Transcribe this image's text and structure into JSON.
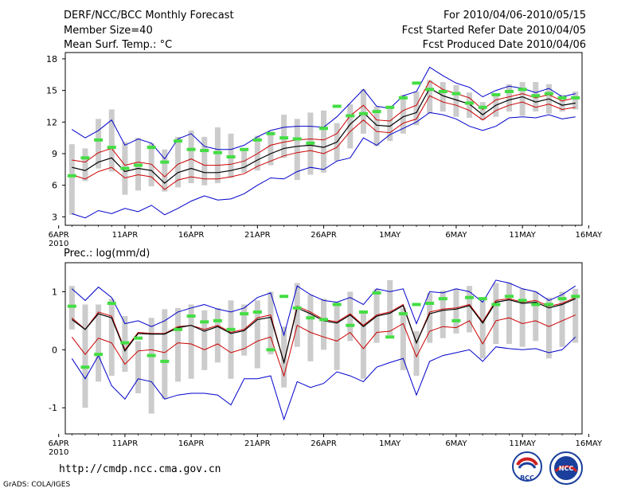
{
  "header": {
    "title": "DERF/NCC/BCC Monthly Forecast",
    "member_size": "Member Size=40",
    "variable": "Mean Surf. Temp.: °C",
    "period": "For 2010/04/06-2010/05/15",
    "start_date": "Fcst Started Refer Date 2010/04/05",
    "produced_date": "Fcst Produced Date 2010/04/06"
  },
  "footer": {
    "url": "http://cmdp.ncc.cma.gov.cn",
    "credit": "GrADS: COLA/IGES",
    "logo_bcc": "BCC",
    "logo_ncc": "NCC"
  },
  "colors": {
    "envelope": "#0000cc",
    "spread": "#cc0000",
    "mean": "#000000",
    "box": "#cccccc",
    "marker": "#44dd44"
  },
  "chart_data": [
    {
      "type": "line",
      "title": "",
      "ylabel": "Mean Surf. Temp.: °C",
      "ylim": [
        2.2,
        18.6
      ],
      "yticks": [
        3,
        6,
        9,
        12,
        15,
        18
      ],
      "xlim": [
        0.5,
        39.5
      ],
      "xtick_positions": [
        0,
        5,
        10,
        15,
        20,
        25,
        30,
        35,
        40
      ],
      "xtick_labels": [
        "6APR",
        "11APR",
        "16APR",
        "21APR",
        "26APR",
        "1MAY",
        "6MAY",
        "11MAY",
        "16MAY"
      ],
      "year_label": "2010",
      "x": [
        1,
        2,
        3,
        4,
        5,
        6,
        7,
        8,
        9,
        10,
        11,
        12,
        13,
        14,
        15,
        16,
        17,
        18,
        19,
        20,
        21,
        22,
        23,
        24,
        25,
        26,
        27,
        28,
        29,
        30,
        31,
        32,
        33,
        34,
        35,
        36,
        37,
        38,
        39
      ],
      "series": [
        {
          "name": "max",
          "values": [
            11.3,
            10.5,
            11.2,
            12.2,
            9.8,
            10.4,
            10.0,
            8.5,
            10.4,
            10.9,
            9.7,
            9.4,
            9.4,
            9.8,
            10.6,
            11.2,
            11.5,
            11.6,
            11.6,
            11.5,
            12.5,
            13.8,
            15.1,
            13.5,
            13.3,
            14.5,
            14.9,
            17.2,
            16.4,
            15.7,
            15.3,
            14.4,
            15.0,
            15.4,
            15.2,
            14.8,
            15.2,
            14.4,
            14.7
          ]
        },
        {
          "name": "upper",
          "values": [
            8.4,
            8.2,
            9.1,
            9.5,
            7.9,
            8.2,
            8.0,
            6.8,
            8.0,
            8.5,
            7.9,
            7.9,
            8.0,
            8.3,
            9.0,
            9.8,
            10.1,
            10.3,
            10.4,
            10.3,
            10.9,
            12.6,
            13.6,
            12.2,
            12.1,
            13.1,
            13.6,
            15.9,
            15.1,
            14.7,
            14.3,
            13.2,
            14.1,
            14.4,
            14.7,
            14.3,
            14.6,
            14.0,
            14.3
          ]
        },
        {
          "name": "mean",
          "values": [
            7.7,
            7.4,
            8.2,
            8.6,
            7.3,
            7.6,
            7.4,
            6.2,
            7.2,
            7.6,
            7.2,
            7.2,
            7.4,
            7.7,
            8.4,
            9.0,
            9.5,
            9.7,
            9.8,
            9.6,
            10.1,
            11.8,
            12.9,
            11.7,
            11.6,
            12.5,
            12.9,
            15.2,
            14.5,
            14.1,
            13.7,
            12.7,
            13.6,
            14.1,
            14.4,
            13.9,
            14.2,
            13.6,
            13.8
          ]
        },
        {
          "name": "lower",
          "values": [
            7.0,
            6.6,
            7.3,
            7.7,
            6.7,
            7.0,
            6.8,
            5.6,
            6.5,
            6.8,
            6.6,
            6.6,
            6.8,
            7.1,
            7.8,
            8.3,
            8.8,
            9.1,
            9.3,
            9.0,
            9.6,
            11.1,
            12.2,
            11.1,
            11.0,
            11.9,
            12.3,
            14.5,
            13.9,
            13.6,
            13.1,
            12.2,
            13.1,
            13.6,
            13.9,
            13.4,
            13.7,
            13.2,
            13.4
          ]
        },
        {
          "name": "min",
          "values": [
            3.3,
            2.9,
            3.6,
            3.3,
            3.8,
            3.5,
            4.1,
            3.2,
            3.8,
            4.5,
            5.0,
            4.6,
            4.7,
            5.2,
            6.0,
            6.7,
            6.6,
            7.3,
            7.7,
            7.5,
            8.3,
            8.6,
            10.5,
            9.8,
            10.8,
            11.4,
            12.0,
            12.9,
            12.7,
            12.3,
            11.6,
            11.2,
            11.6,
            12.4,
            12.5,
            12.4,
            12.7,
            12.3,
            12.5
          ]
        }
      ],
      "boxes": [
        [
          3.2,
          9.9
        ],
        [
          6.4,
          9.5
        ],
        [
          7.6,
          12.3
        ],
        [
          7.3,
          13.2
        ],
        [
          5.1,
          10.1
        ],
        [
          5.5,
          10.5
        ],
        [
          5.9,
          10.0
        ],
        [
          5.4,
          9.4
        ],
        [
          5.8,
          10.6
        ],
        [
          6.2,
          11.2
        ],
        [
          6.0,
          10.6
        ],
        [
          6.2,
          11.5
        ],
        [
          6.7,
          10.9
        ],
        [
          7.2,
          9.3
        ],
        [
          7.4,
          10.7
        ],
        [
          7.9,
          11.1
        ],
        [
          8.6,
          12.7
        ],
        [
          6.5,
          12.3
        ],
        [
          7.0,
          12.9
        ],
        [
          7.2,
          13.1
        ],
        [
          8.3,
          11.9
        ],
        [
          9.5,
          13.7
        ],
        [
          10.9,
          15.1
        ],
        [
          9.7,
          13.5
        ],
        [
          10.2,
          13.4
        ],
        [
          10.9,
          14.6
        ],
        [
          11.7,
          14.9
        ],
        [
          12.8,
          16.0
        ],
        [
          13.0,
          15.8
        ],
        [
          12.5,
          15.5
        ],
        [
          12.4,
          14.8
        ],
        [
          12.2,
          13.9
        ],
        [
          12.5,
          14.7
        ],
        [
          13.0,
          15.6
        ],
        [
          12.6,
          15.8
        ],
        [
          13.0,
          15.8
        ],
        [
          12.8,
          15.6
        ],
        [
          13.0,
          14.6
        ],
        [
          13.2,
          14.9
        ]
      ],
      "markers": [
        6.9,
        8.6,
        10.3,
        9.6,
        7.6,
        7.9,
        9.6,
        8.2,
        10.2,
        9.4,
        9.3,
        9.1,
        8.7,
        9.4,
        10.3,
        10.9,
        10.5,
        10.4,
        10.0,
        11.4,
        13.5,
        12.6,
        12.8,
        13.0,
        13.4,
        14.3,
        15.7,
        15.1,
        14.9,
        14.7,
        13.8,
        13.4,
        14.6,
        14.9,
        15.1,
        14.5,
        14.7,
        14.3,
        14.3
      ]
    },
    {
      "type": "line",
      "title": "",
      "ylabel": "Prec.: log(mm/d)",
      "ylim": [
        -1.45,
        1.5
      ],
      "yticks": [
        -1,
        0,
        1
      ],
      "xlim": [
        0.5,
        39.5
      ],
      "xtick_positions": [
        0,
        5,
        10,
        15,
        20,
        25,
        30,
        35,
        40
      ],
      "xtick_labels": [
        "6APR",
        "11APR",
        "16APR",
        "21APR",
        "26APR",
        "1MAY",
        "6MAY",
        "11MAY",
        "16MAY"
      ],
      "year_label": "2010",
      "x": [
        1,
        2,
        3,
        4,
        5,
        6,
        7,
        8,
        9,
        10,
        11,
        12,
        13,
        14,
        15,
        16,
        17,
        18,
        19,
        20,
        21,
        22,
        23,
        24,
        25,
        26,
        27,
        28,
        29,
        30,
        31,
        32,
        33,
        34,
        35,
        36,
        37,
        38,
        39
      ],
      "series": [
        {
          "name": "max",
          "values": [
            1.05,
            0.85,
            1.08,
            0.9,
            0.45,
            0.5,
            0.4,
            0.5,
            0.65,
            0.72,
            0.78,
            0.7,
            0.65,
            0.72,
            0.9,
            0.98,
            0.25,
            1.1,
            0.95,
            0.85,
            0.82,
            0.9,
            0.78,
            1.05,
            1.0,
            1.05,
            0.45,
            1.0,
            0.98,
            1.05,
            1.0,
            0.82,
            1.2,
            1.15,
            1.05,
            1.0,
            0.85,
            0.95,
            1.1
          ]
        },
        {
          "name": "upper",
          "values": [
            0.55,
            0.35,
            0.65,
            0.58,
            0.0,
            0.3,
            0.28,
            0.28,
            0.4,
            0.42,
            0.35,
            0.42,
            0.3,
            0.35,
            0.55,
            0.6,
            -0.22,
            0.75,
            0.65,
            0.52,
            0.48,
            0.62,
            0.42,
            0.6,
            0.65,
            0.78,
            0.12,
            0.65,
            0.7,
            0.72,
            0.78,
            0.48,
            0.85,
            0.88,
            0.82,
            0.85,
            0.75,
            0.8,
            0.9
          ]
        },
        {
          "name": "mean",
          "values": [
            0.52,
            0.35,
            0.62,
            0.55,
            -0.02,
            0.28,
            0.27,
            0.27,
            0.38,
            0.42,
            0.32,
            0.4,
            0.28,
            0.33,
            0.52,
            0.56,
            -0.22,
            0.72,
            0.62,
            0.5,
            0.46,
            0.6,
            0.4,
            0.58,
            0.63,
            0.76,
            0.12,
            0.62,
            0.68,
            0.7,
            0.76,
            0.46,
            0.82,
            0.86,
            0.8,
            0.82,
            0.72,
            0.78,
            0.88
          ]
        },
        {
          "name": "lower",
          "values": [
            0.22,
            -0.08,
            0.2,
            0.12,
            -0.25,
            -0.02,
            0.0,
            -0.05,
            0.12,
            0.1,
            0.0,
            0.1,
            -0.05,
            0.02,
            0.15,
            0.22,
            -0.45,
            0.42,
            0.3,
            0.22,
            0.15,
            0.3,
            0.02,
            0.3,
            0.32,
            0.45,
            -0.12,
            0.32,
            0.4,
            0.38,
            0.5,
            0.1,
            0.5,
            0.55,
            0.45,
            0.5,
            0.4,
            0.5,
            0.6
          ]
        },
        {
          "name": "min",
          "values": [
            -0.15,
            -0.5,
            -0.1,
            -0.62,
            -0.85,
            -0.5,
            -0.55,
            -0.85,
            -0.78,
            -0.75,
            -0.75,
            -0.78,
            -0.95,
            -0.5,
            -0.5,
            -0.45,
            -1.2,
            -0.55,
            -0.65,
            -0.58,
            -0.38,
            -0.45,
            -0.55,
            -0.3,
            -0.22,
            -0.15,
            -0.78,
            -0.2,
            -0.1,
            -0.05,
            0.0,
            -0.2,
            0.05,
            0.02,
            0.0,
            0.02,
            -0.05,
            0.0,
            0.22
          ]
        },
        {
          "name": "max_peak",
          "values": [
            1.1,
            0.95,
            1.12,
            1.05,
            0.52,
            0.55,
            0.45,
            0.55,
            0.7,
            0.8,
            0.85,
            0.78,
            0.7,
            0.78,
            0.95,
            1.02,
            0.3,
            1.12,
            1.0,
            0.9,
            0.85,
            0.95,
            0.82,
            1.08,
            1.02,
            1.08,
            0.5,
            1.02,
            1.0,
            1.08,
            1.02,
            0.85,
            1.2,
            1.18,
            1.08,
            1.02,
            0.9,
            1.0,
            1.1
          ]
        }
      ],
      "boxes": [
        [
          0.35,
          1.1
        ],
        [
          -1.0,
          0.78
        ],
        [
          -0.55,
          0.78
        ],
        [
          -0.45,
          0.88
        ],
        [
          -0.38,
          0.58
        ],
        [
          -0.75,
          0.15
        ],
        [
          -1.1,
          0.55
        ],
        [
          -0.85,
          0.7
        ],
        [
          -0.55,
          0.72
        ],
        [
          -0.5,
          0.78
        ],
        [
          -0.35,
          0.68
        ],
        [
          -0.22,
          0.72
        ],
        [
          -0.5,
          0.85
        ],
        [
          -0.1,
          0.78
        ],
        [
          -0.32,
          0.85
        ],
        [
          -0.08,
          1.0
        ],
        [
          -0.65,
          0.4
        ],
        [
          0.05,
          1.15
        ],
        [
          -0.2,
          0.95
        ],
        [
          0.0,
          0.88
        ],
        [
          -0.35,
          0.82
        ],
        [
          0.15,
          1.0
        ],
        [
          -0.5,
          0.65
        ],
        [
          0.12,
          1.05
        ],
        [
          0.25,
          1.2
        ],
        [
          -0.35,
          0.72
        ],
        [
          -0.45,
          0.32
        ],
        [
          0.12,
          0.98
        ],
        [
          0.2,
          1.02
        ],
        [
          0.28,
          1.05
        ],
        [
          0.3,
          1.1
        ],
        [
          -0.15,
          0.85
        ],
        [
          0.1,
          1.15
        ],
        [
          0.1,
          1.15
        ],
        [
          0.05,
          1.05
        ],
        [
          0.15,
          1.0
        ],
        [
          -0.15,
          0.9
        ],
        [
          0.05,
          1.0
        ],
        [
          0.12,
          1.05
        ]
      ],
      "markers": [
        0.75,
        -0.3,
        -0.08,
        0.8,
        0.12,
        0.2,
        -0.1,
        -0.2,
        0.35,
        0.58,
        0.48,
        0.5,
        0.35,
        0.62,
        0.65,
        0.0,
        0.92,
        0.72,
        0.55,
        0.52,
        0.78,
        0.42,
        0.65,
        0.98,
        0.22,
        0.62,
        0.78,
        0.8,
        0.88,
        0.5,
        0.9,
        0.88,
        0.78,
        0.92,
        0.85,
        0.78,
        0.78,
        0.88,
        0.92
      ]
    }
  ]
}
